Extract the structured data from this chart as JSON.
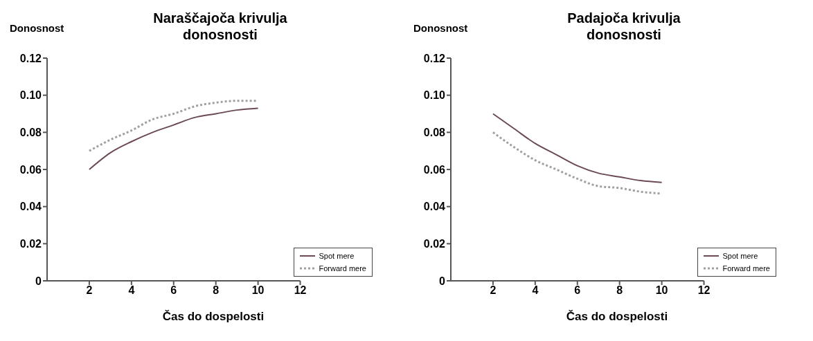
{
  "chart_data": [
    {
      "type": "line",
      "title": "Naraščajoča krivulja donosnosti",
      "xlabel": "Čas do dospelosti",
      "ylabel": "Donosnost",
      "x": [
        2,
        3,
        4,
        5,
        6,
        7,
        8,
        9,
        10
      ],
      "xlim": [
        0,
        12
      ],
      "xticks": [
        2,
        4,
        6,
        8,
        10,
        12
      ],
      "ylim": [
        0,
        0.12
      ],
      "yticks": [
        0,
        0.02,
        0.04,
        0.06,
        0.08,
        {
          "value": 0.1,
          "label": "0.10"
        },
        0.12
      ],
      "legend": "bottom right",
      "marker": "none",
      "series": [
        {
          "name": "Spot mere",
          "color": "#6b4a55",
          "line_style": "solid",
          "values": [
            0.06,
            0.069,
            0.075,
            0.08,
            0.084,
            0.088,
            0.09,
            0.092,
            0.093
          ]
        },
        {
          "name": "Forward mere",
          "color": "#a0a0a0",
          "line_style": "dotted",
          "values": [
            0.07,
            0.076,
            0.081,
            0.087,
            0.09,
            0.094,
            0.096,
            0.097,
            0.097
          ]
        }
      ]
    },
    {
      "type": "line",
      "title": "Padajoča krivulja donosnosti",
      "xlabel": "Čas do dospelosti",
      "ylabel": "Donosnost",
      "x": [
        2,
        3,
        4,
        5,
        6,
        7,
        8,
        9,
        10
      ],
      "xlim": [
        0,
        12
      ],
      "xticks": [
        2,
        4,
        6,
        8,
        10,
        12
      ],
      "ylim": [
        0,
        0.12
      ],
      "yticks": [
        0,
        0.02,
        0.04,
        0.06,
        0.08,
        {
          "value": 0.1,
          "label": "0.10"
        },
        0.12
      ],
      "legend": "bottom right",
      "marker": "none",
      "series": [
        {
          "name": "Spot mere",
          "color": "#6b4a55",
          "line_style": "solid",
          "values": [
            0.09,
            0.082,
            0.074,
            0.068,
            0.062,
            0.058,
            0.056,
            0.054,
            0.053
          ]
        },
        {
          "name": "Forward mere",
          "color": "#a0a0a0",
          "line_style": "dotted",
          "values": [
            0.08,
            0.072,
            0.065,
            0.06,
            0.055,
            0.051,
            0.05,
            0.048,
            0.047
          ]
        }
      ]
    }
  ]
}
